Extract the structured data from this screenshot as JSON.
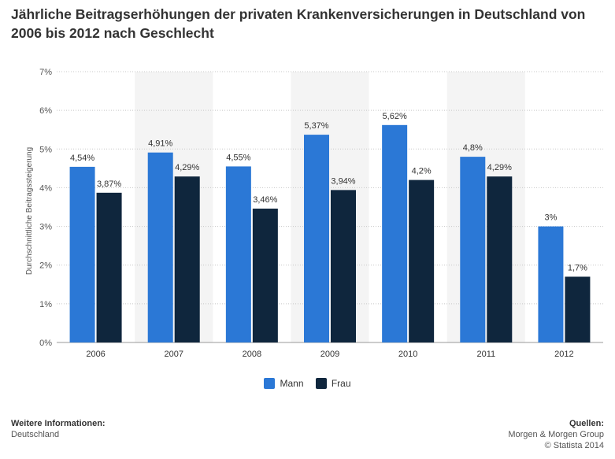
{
  "title": "Jährliche Beitragserhöhungen der privaten Krankenversicherungen in Deutschland von 2006 bis 2012 nach Geschlecht",
  "chart_data": {
    "type": "bar",
    "title": "Jährliche Beitragserhöhungen der privaten Krankenversicherungen in Deutschland von 2006 bis 2012 nach Geschlecht",
    "xlabel": "",
    "ylabel": "Durchschnittliche Beitragssteigerung",
    "categories": [
      "2006",
      "2007",
      "2008",
      "2009",
      "2010",
      "2011",
      "2012"
    ],
    "series": [
      {
        "name": "Mann",
        "color": "#2b78d6",
        "values": [
          4.54,
          4.91,
          4.55,
          5.37,
          5.62,
          4.8,
          3.0
        ],
        "labels": [
          "4,54%",
          "4,91%",
          "4,55%",
          "5,37%",
          "5,62%",
          "4,8%",
          "3%"
        ]
      },
      {
        "name": "Frau",
        "color": "#0f263d",
        "values": [
          3.87,
          4.29,
          3.46,
          3.94,
          4.2,
          4.29,
          1.7
        ],
        "labels": [
          "3,87%",
          "4,29%",
          "3,46%",
          "3,94%",
          "4,2%",
          "4,29%",
          "1,7%"
        ]
      }
    ],
    "ylim": [
      0,
      7
    ],
    "yticks": [
      "0%",
      "1%",
      "2%",
      "3%",
      "4%",
      "5%",
      "6%",
      "7%"
    ],
    "grid": true,
    "legend_position": "bottom"
  },
  "footer": {
    "left_heading": "Weitere Informationen:",
    "left_text": "Deutschland",
    "right_heading": "Quellen:",
    "right_source": "Morgen & Morgen Group",
    "right_copyright": "© Statista 2014"
  }
}
